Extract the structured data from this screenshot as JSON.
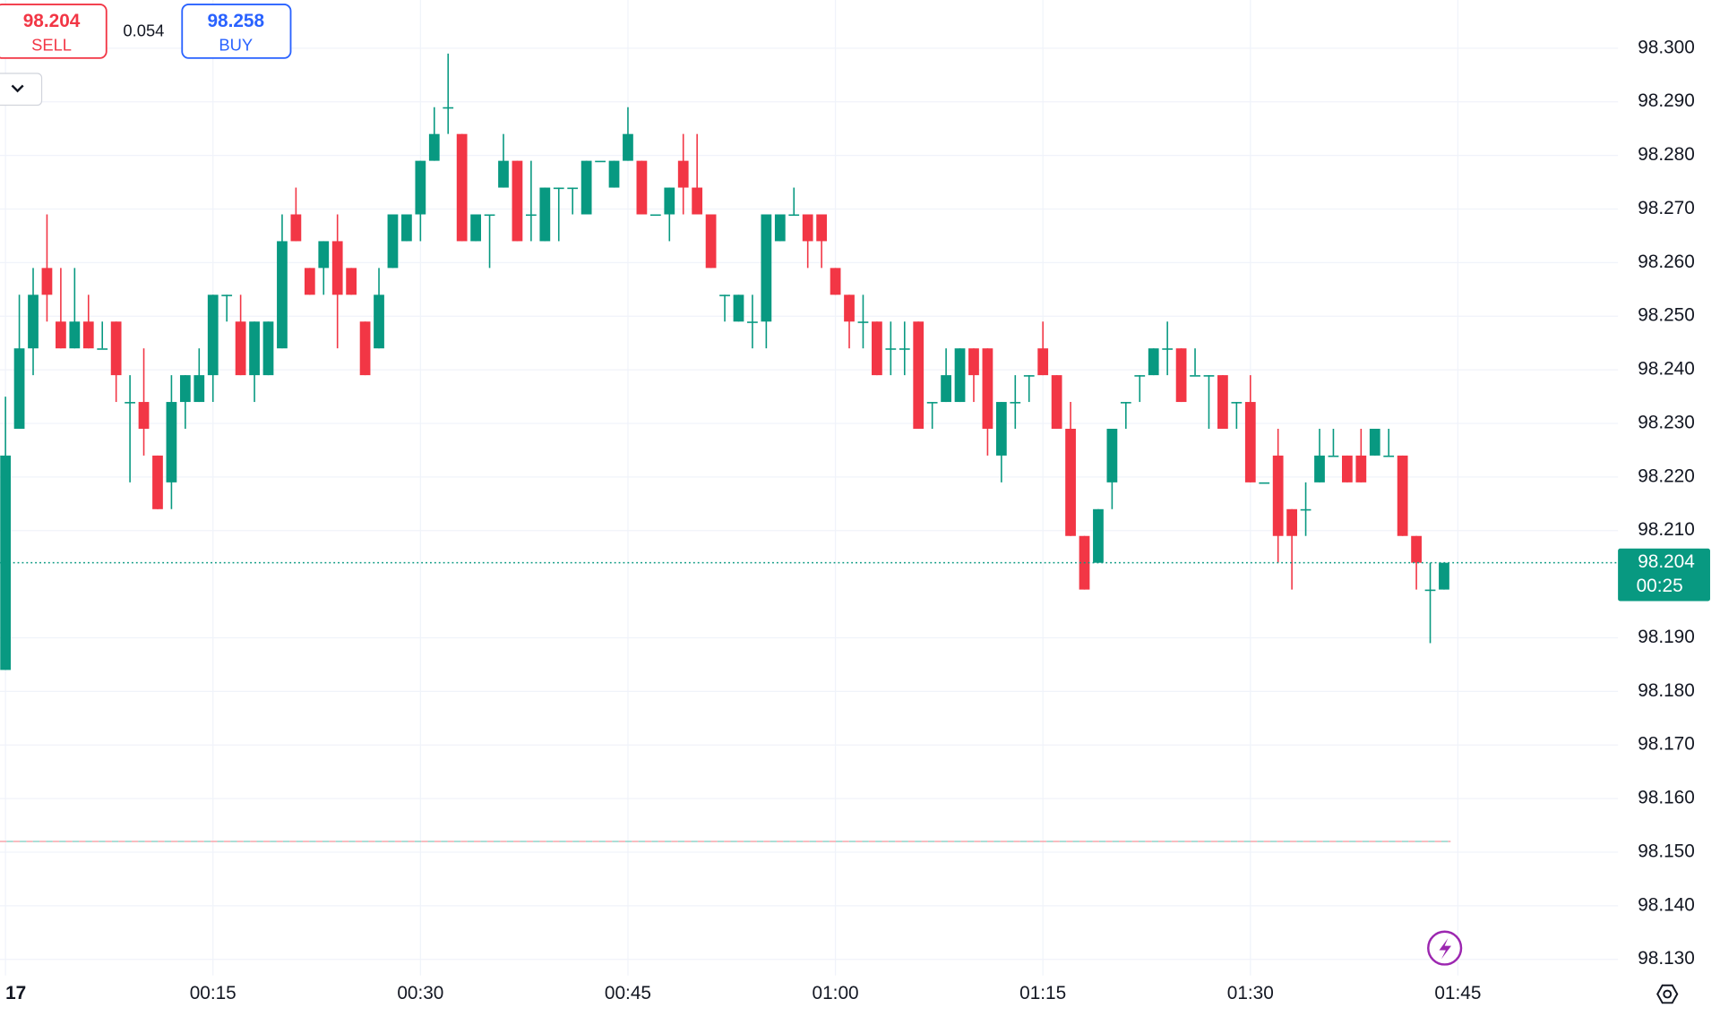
{
  "chart_data": {
    "type": "candlestick",
    "x": [
      "00:00",
      "00:01",
      "00:02",
      "00:03",
      "00:04",
      "00:05",
      "00:06",
      "00:07",
      "00:08",
      "00:09",
      "00:10",
      "00:11",
      "00:12",
      "00:13",
      "00:14",
      "00:15",
      "00:16",
      "00:17",
      "00:18",
      "00:19",
      "00:20",
      "00:21",
      "00:22",
      "00:23",
      "00:24",
      "00:25",
      "00:26",
      "00:27",
      "00:28",
      "00:29",
      "00:30",
      "00:31",
      "00:32",
      "00:33",
      "00:34",
      "00:35",
      "00:36",
      "00:37",
      "00:38",
      "00:39",
      "00:40",
      "00:41",
      "00:42",
      "00:43",
      "00:44",
      "00:45",
      "00:46",
      "00:47",
      "00:48",
      "00:49",
      "00:50",
      "00:51",
      "00:52",
      "00:53",
      "00:54",
      "00:55",
      "00:56",
      "00:57",
      "00:58",
      "00:59",
      "01:00",
      "01:01",
      "01:02",
      "01:03",
      "01:04",
      "01:05",
      "01:06",
      "01:07",
      "01:08",
      "01:09",
      "01:10",
      "01:11",
      "01:12",
      "01:13",
      "01:14",
      "01:15",
      "01:16",
      "01:17",
      "01:18",
      "01:19",
      "01:20",
      "01:21",
      "01:22",
      "01:23",
      "01:24",
      "01:25",
      "01:26",
      "01:27",
      "01:28",
      "01:29",
      "01:30",
      "01:31",
      "01:32",
      "01:33",
      "01:34",
      "01:35",
      "01:36",
      "01:37",
      "01:38",
      "01:39",
      "01:40",
      "01:41",
      "01:42",
      "01:43",
      "01:44"
    ],
    "open": [
      98.184,
      98.229,
      98.244,
      98.259,
      98.249,
      98.244,
      98.249,
      98.244,
      98.249,
      98.234,
      98.234,
      98.224,
      98.219,
      98.234,
      98.234,
      98.239,
      98.254,
      98.249,
      98.239,
      98.239,
      98.244,
      98.269,
      98.259,
      98.259,
      98.264,
      98.259,
      98.249,
      98.244,
      98.259,
      98.264,
      98.269,
      98.279,
      98.289,
      98.284,
      98.264,
      98.269,
      98.274,
      98.279,
      98.269,
      98.264,
      98.274,
      98.274,
      98.269,
      98.279,
      98.274,
      98.279,
      98.279,
      98.269,
      98.269,
      98.279,
      98.274,
      98.269,
      98.254,
      98.249,
      98.249,
      98.249,
      98.264,
      98.269,
      98.269,
      98.269,
      98.259,
      98.254,
      98.249,
      98.249,
      98.244,
      98.244,
      98.249,
      98.234,
      98.234,
      98.234,
      98.244,
      98.244,
      98.224,
      98.234,
      98.239,
      98.244,
      98.239,
      98.229,
      98.209,
      98.204,
      98.219,
      98.234,
      98.239,
      98.239,
      98.244,
      98.244,
      98.239,
      98.239,
      98.239,
      98.234,
      98.234,
      98.219,
      98.224,
      98.214,
      98.214,
      98.219,
      98.224,
      98.224,
      98.224,
      98.224,
      98.224,
      98.224,
      98.209,
      98.199,
      98.199
    ],
    "high": [
      98.235,
      98.254,
      98.259,
      98.269,
      98.259,
      98.259,
      98.254,
      98.249,
      98.249,
      98.239,
      98.244,
      98.224,
      98.239,
      98.239,
      98.244,
      98.254,
      98.254,
      98.254,
      98.249,
      98.249,
      98.269,
      98.274,
      98.259,
      98.264,
      98.269,
      98.259,
      98.249,
      98.259,
      98.269,
      98.269,
      98.279,
      98.289,
      98.299,
      98.284,
      98.269,
      98.269,
      98.284,
      98.279,
      98.279,
      98.274,
      98.274,
      98.274,
      98.279,
      98.279,
      98.279,
      98.289,
      98.279,
      98.269,
      98.274,
      98.284,
      98.284,
      98.269,
      98.254,
      98.254,
      98.254,
      98.269,
      98.269,
      98.274,
      98.269,
      98.269,
      98.259,
      98.254,
      98.254,
      98.249,
      98.249,
      98.249,
      98.249,
      98.234,
      98.244,
      98.244,
      98.244,
      98.244,
      98.234,
      98.239,
      98.239,
      98.249,
      98.239,
      98.234,
      98.209,
      98.214,
      98.229,
      98.234,
      98.239,
      98.244,
      98.249,
      98.244,
      98.244,
      98.239,
      98.239,
      98.234,
      98.239,
      98.219,
      98.229,
      98.214,
      98.219,
      98.229,
      98.229,
      98.224,
      98.229,
      98.229,
      98.229,
      98.224,
      98.209,
      98.204,
      98.204
    ],
    "low": [
      98.184,
      98.229,
      98.239,
      98.249,
      98.244,
      98.244,
      98.244,
      98.244,
      98.234,
      98.219,
      98.224,
      98.214,
      98.214,
      98.229,
      98.234,
      98.234,
      98.249,
      98.239,
      98.234,
      98.239,
      98.244,
      98.264,
      98.254,
      98.254,
      98.244,
      98.254,
      98.239,
      98.244,
      98.259,
      98.264,
      98.264,
      98.279,
      98.284,
      98.264,
      98.264,
      98.259,
      98.274,
      98.264,
      98.264,
      98.264,
      98.264,
      98.269,
      98.269,
      98.279,
      98.274,
      98.279,
      98.269,
      98.269,
      98.264,
      98.269,
      98.269,
      98.259,
      98.249,
      98.249,
      98.244,
      98.244,
      98.264,
      98.269,
      98.259,
      98.259,
      98.254,
      98.244,
      98.244,
      98.239,
      98.239,
      98.239,
      98.229,
      98.229,
      98.234,
      98.234,
      98.234,
      98.224,
      98.219,
      98.229,
      98.234,
      98.239,
      98.229,
      98.209,
      98.199,
      98.204,
      98.214,
      98.229,
      98.234,
      98.239,
      98.239,
      98.234,
      98.239,
      98.229,
      98.229,
      98.229,
      98.219,
      98.219,
      98.204,
      98.199,
      98.209,
      98.219,
      98.224,
      98.219,
      98.219,
      98.224,
      98.224,
      98.209,
      98.199,
      98.189,
      98.199
    ],
    "close": [
      98.224,
      98.244,
      98.254,
      98.254,
      98.244,
      98.249,
      98.244,
      98.244,
      98.239,
      98.234,
      98.229,
      98.214,
      98.234,
      98.239,
      98.239,
      98.254,
      98.254,
      98.239,
      98.249,
      98.249,
      98.264,
      98.264,
      98.254,
      98.264,
      98.254,
      98.254,
      98.239,
      98.254,
      98.269,
      98.269,
      98.279,
      98.284,
      98.289,
      98.264,
      98.269,
      98.269,
      98.279,
      98.264,
      98.269,
      98.274,
      98.274,
      98.274,
      98.279,
      98.279,
      98.279,
      98.284,
      98.269,
      98.269,
      98.274,
      98.274,
      98.269,
      98.259,
      98.254,
      98.254,
      98.249,
      98.269,
      98.269,
      98.269,
      98.264,
      98.264,
      98.254,
      98.249,
      98.249,
      98.239,
      98.244,
      98.244,
      98.229,
      98.234,
      98.239,
      98.244,
      98.239,
      98.229,
      98.234,
      98.234,
      98.239,
      98.239,
      98.229,
      98.209,
      98.199,
      98.214,
      98.229,
      98.234,
      98.239,
      98.244,
      98.244,
      98.234,
      98.239,
      98.239,
      98.229,
      98.234,
      98.219,
      98.219,
      98.209,
      98.209,
      98.214,
      98.224,
      98.224,
      98.219,
      98.219,
      98.229,
      98.224,
      98.209,
      98.204,
      98.199,
      98.204
    ],
    "up_color": "#089981",
    "down_color": "#f23645",
    "ylim": [
      98.127,
      98.309
    ],
    "yticks": [
      {
        "value": 98.3,
        "label": "98.300"
      },
      {
        "value": 98.29,
        "label": "98.290"
      },
      {
        "value": 98.28,
        "label": "98.280"
      },
      {
        "value": 98.27,
        "label": "98.270"
      },
      {
        "value": 98.26,
        "label": "98.260"
      },
      {
        "value": 98.25,
        "label": "98.250"
      },
      {
        "value": 98.24,
        "label": "98.240"
      },
      {
        "value": 98.23,
        "label": "98.230"
      },
      {
        "value": 98.22,
        "label": "98.220"
      },
      {
        "value": 98.21,
        "label": "98.210"
      },
      {
        "value": 98.19,
        "label": "98.190"
      },
      {
        "value": 98.18,
        "label": "98.180"
      },
      {
        "value": 98.17,
        "label": "98.170"
      },
      {
        "value": 98.16,
        "label": "98.160"
      },
      {
        "value": 98.15,
        "label": "98.150"
      },
      {
        "value": 98.14,
        "label": "98.140"
      },
      {
        "value": 98.13,
        "label": "98.130"
      }
    ],
    "xticks": [
      {
        "value": "00:00",
        "label": "17"
      },
      "00:15",
      "00:30",
      "00:45",
      "01:00",
      "01:15",
      "01:30",
      "01:45"
    ],
    "grid": true,
    "last_price": {
      "value": 98.204,
      "countdown": "00:25",
      "color": "#089981"
    },
    "reference_line": 98.152
  },
  "trade_panel": {
    "sell": {
      "price": 98.204,
      "label": "SELL"
    },
    "spread": 0.054,
    "buy": {
      "price": 98.258,
      "label": "BUY"
    }
  }
}
